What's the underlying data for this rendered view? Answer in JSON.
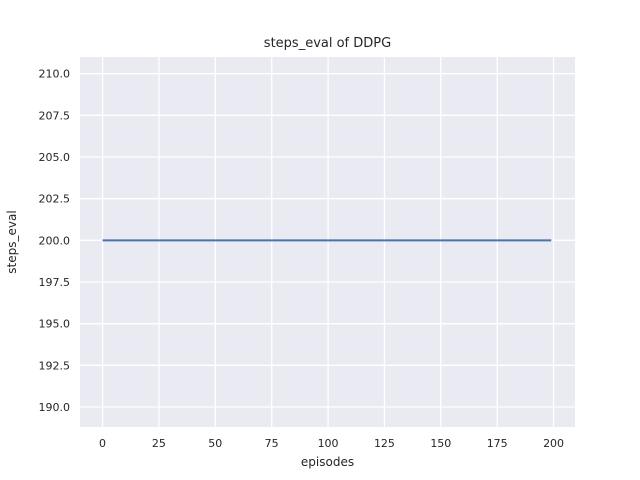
{
  "chart_data": {
    "type": "line",
    "title": "steps_eval of DDPG",
    "xlabel": "episodes",
    "ylabel": "steps_eval",
    "x_tick_values": [
      0,
      25,
      50,
      75,
      100,
      125,
      150,
      175,
      200
    ],
    "x_tick_labels": [
      "0",
      "25",
      "50",
      "75",
      "100",
      "125",
      "150",
      "175",
      "200"
    ],
    "y_tick_values": [
      190.0,
      192.5,
      195.0,
      197.5,
      200.0,
      202.5,
      205.0,
      207.5,
      210.0
    ],
    "y_tick_labels": [
      "190.0",
      "192.5",
      "195.0",
      "197.5",
      "200.0",
      "202.5",
      "205.0",
      "207.5",
      "210.0"
    ],
    "xlim": [
      -10,
      209.5
    ],
    "ylim": [
      188.8,
      211.0
    ],
    "grid": true,
    "legend_position": "none",
    "series": [
      {
        "name": "steps_eval",
        "color": "#4C72B0",
        "x": [
          0,
          199
        ],
        "y": [
          200,
          200
        ],
        "description": "constant value 200 for every episode from 0 to 199"
      }
    ],
    "styles": {
      "plot_background": "#EAEAF2",
      "grid_color": "#FFFFFF",
      "figure_background": "#FFFFFF",
      "text_color": "#262626",
      "line_width": 2,
      "tick_font_size": 11,
      "title_font_size": 13
    }
  }
}
